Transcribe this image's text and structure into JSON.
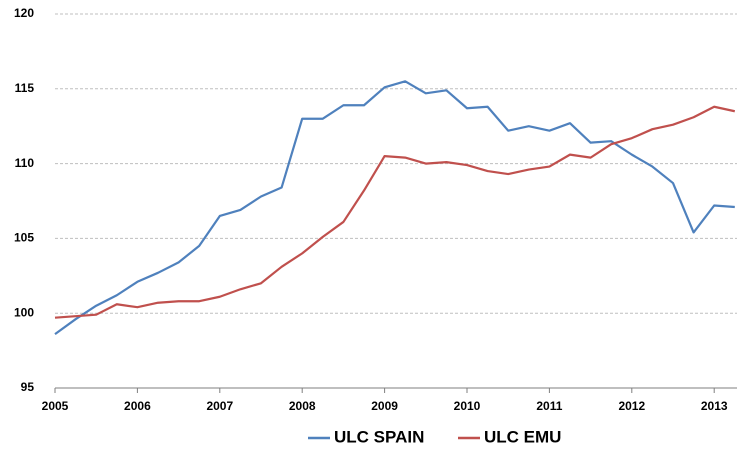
{
  "chart_data": {
    "type": "line",
    "categories": [
      "2005",
      null,
      null,
      null,
      "2006",
      null,
      null,
      null,
      "2007",
      null,
      null,
      null,
      "2008",
      null,
      null,
      null,
      "2009",
      null,
      null,
      null,
      "2010",
      null,
      null,
      null,
      "2011",
      null,
      null,
      null,
      "2012",
      null,
      null,
      null,
      "2013",
      null
    ],
    "series": [
      {
        "name": "ULC SPAIN",
        "color": "#4f81bd",
        "values": [
          98.6,
          99.6,
          100.5,
          101.2,
          102.1,
          102.7,
          103.4,
          104.5,
          106.5,
          106.9,
          107.8,
          108.4,
          113.0,
          113.0,
          113.9,
          113.9,
          115.1,
          115.5,
          114.7,
          114.9,
          113.7,
          113.8,
          112.2,
          112.5,
          112.2,
          112.7,
          111.4,
          111.5,
          110.6,
          109.8,
          108.7,
          105.4,
          107.2,
          107.1
        ]
      },
      {
        "name": "ULC EMU",
        "color": "#c0504d",
        "values": [
          99.7,
          99.8,
          99.9,
          100.6,
          100.4,
          100.7,
          100.8,
          100.8,
          101.1,
          101.6,
          102.0,
          103.1,
          104.0,
          105.1,
          106.1,
          108.2,
          110.5,
          110.4,
          110.0,
          110.1,
          109.9,
          109.5,
          109.3,
          109.6,
          109.8,
          110.6,
          110.4,
          111.3,
          111.7,
          112.3,
          112.6,
          113.1,
          113.8,
          113.5
        ]
      }
    ],
    "ylim": [
      95,
      120
    ],
    "yticks": [
      95,
      100,
      105,
      110,
      115,
      120
    ],
    "grid": true,
    "legend": "bottom"
  }
}
